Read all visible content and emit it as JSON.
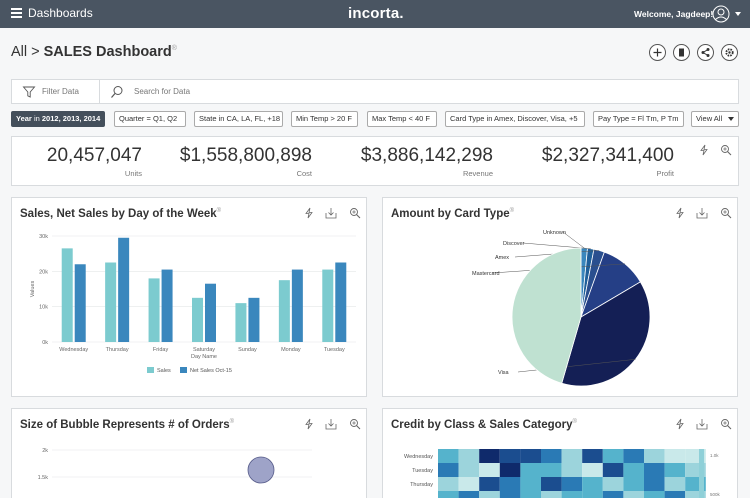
{
  "topbar": {
    "title": "Dashboards",
    "logo": "incorta.",
    "welcome": "Welcome, Jagdeep!"
  },
  "breadcrumb": {
    "root": "All > ",
    "title": "SALES Dashboard",
    "mark": "®"
  },
  "filterbar": {
    "filter_label": "Filter Data",
    "search_placeholder": "Search for Data"
  },
  "chips": [
    {
      "field": "Year",
      "op": "in",
      "value": "2012, 2013, 2014"
    },
    {
      "text": "Quarter = Q1, Q2"
    },
    {
      "text": "State in CA, LA, FL, +18"
    },
    {
      "text": "Min Temp > 20 F"
    },
    {
      "text": "Max Temp < 40 F"
    },
    {
      "text": "Card Type in Amex, Discover, Visa, +5"
    },
    {
      "text": "Pay Type = Fl Tm, P Tm"
    },
    {
      "text": "View All"
    }
  ],
  "kpis": [
    {
      "value": "20,457,047",
      "label": "Units"
    },
    {
      "value": "$1,558,800,898",
      "label": "Cost"
    },
    {
      "value": "$3,886,142,298",
      "label": "Revenue"
    },
    {
      "value": "$2,327,341,400",
      "label": "Profit"
    }
  ],
  "panels": {
    "sales_title": "Sales, Net Sales by Day of the Week",
    "card_title": "Amount by Card Type",
    "bubble_title": "Size of Bubble Represents # of Orders",
    "credit_title": "Credit by Class & Sales Category",
    "mark": "®"
  },
  "colors": {
    "sales": "#7ccbcf",
    "net_sales": "#3a87bd",
    "topbar": "#4a5562"
  },
  "icons": [
    "menu-icon",
    "user-icon",
    "plus-icon",
    "document-icon",
    "share-icon",
    "gear-icon",
    "funnel-icon",
    "search-icon",
    "lightning-icon",
    "download-icon",
    "zoom-icon"
  ],
  "chart_data": [
    {
      "type": "bar",
      "title": "Sales, Net Sales by Day of the Week",
      "categories": [
        "Wednesday",
        "Thursday",
        "Friday",
        "Saturday",
        "Sunday",
        "Monday",
        "Tuesday"
      ],
      "category_labels": [
        [
          "Wednesday"
        ],
        [
          "Thursday"
        ],
        [
          "Friday"
        ],
        [
          "Saturday",
          "Day Name"
        ],
        [
          "Sunday"
        ],
        [
          "Monday"
        ],
        [
          "Tuesday"
        ]
      ],
      "series": [
        {
          "name": "Sales",
          "values": [
            26500,
            22500,
            18000,
            12500,
            11000,
            17500,
            20500
          ]
        },
        {
          "name": "Net Sales Oct-15",
          "values": [
            22000,
            29500,
            20500,
            16500,
            12500,
            20500,
            22500
          ]
        }
      ],
      "xlabel": "Day Name",
      "ylabel": "Values",
      "ylim": [
        0,
        30000
      ],
      "yticks": [
        0,
        10000,
        20000,
        30000
      ],
      "ytick_labels": [
        "0k",
        "10k",
        "20k",
        "30k"
      ],
      "grid": true,
      "legend": "bottom"
    },
    {
      "type": "pie",
      "title": "Amount by Card Type",
      "labels": [
        "Unknown",
        "Discover",
        "Amex",
        "Mastercard",
        "Visa",
        ""
      ],
      "values": [
        1.5,
        1.5,
        2.5,
        11,
        38,
        45.5
      ],
      "colors": [
        "#3a87bd",
        "#1f5f9a",
        "#2a4f8f",
        "#253f86",
        "#141f55",
        "#bfe1d1"
      ]
    },
    {
      "type": "scatter",
      "title": "Size of Bubble Represents # of Orders",
      "yticks": [
        1500,
        2000
      ],
      "ytick_labels": [
        "1.5k",
        "2k"
      ],
      "points": [
        {
          "y": 1630
        }
      ]
    },
    {
      "type": "heatmap",
      "title": "Credit by Class & Sales Category",
      "rows": [
        "Wednesday",
        "Tuesday",
        "Thursday"
      ],
      "legend_labels": [
        "1.0k",
        "500k"
      ]
    }
  ]
}
